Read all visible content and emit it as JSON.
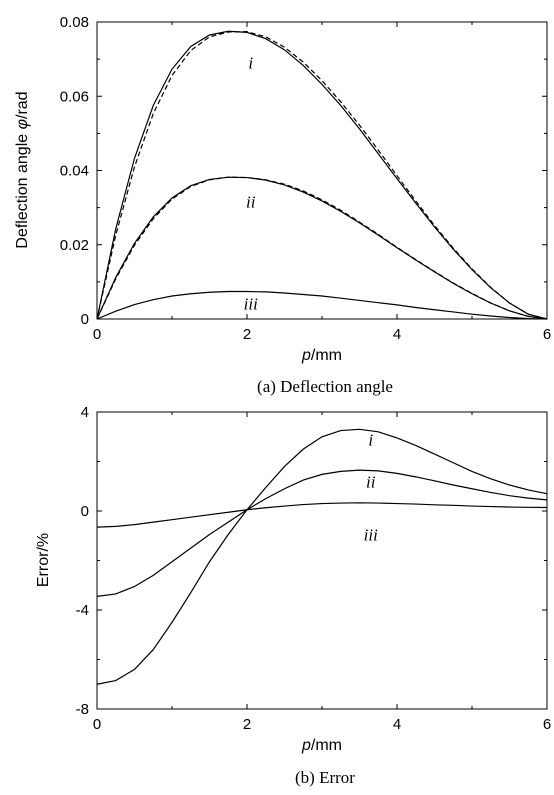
{
  "chart_data": [
    {
      "type": "line",
      "caption": "(a) Deflection angle",
      "xlabel_var": "p",
      "xlabel_unit": "/mm",
      "ylabel_prefix": "Deflection angle ",
      "ylabel_var": "φ",
      "ylabel_unit": "/rad",
      "xlim": [
        0,
        6
      ],
      "ylim": [
        0,
        0.08
      ],
      "xticks": [
        0,
        2,
        4,
        6
      ],
      "xtick_labels": [
        "0",
        "2",
        "4",
        "6"
      ],
      "yticks": [
        0,
        0.02,
        0.04,
        0.06,
        0.08
      ],
      "ytick_labels": [
        "0",
        "0.02",
        "0.04",
        "0.06",
        "0.08"
      ],
      "grid": false,
      "series": [
        {
          "name": "i",
          "style": "solid",
          "x": [
            0,
            0.25,
            0.5,
            0.75,
            1,
            1.25,
            1.5,
            1.75,
            2,
            2.25,
            2.5,
            2.75,
            3,
            3.25,
            3.5,
            3.75,
            4,
            4.25,
            4.5,
            4.75,
            5,
            5.25,
            5.5,
            5.75,
            6
          ],
          "values": [
            0,
            0.0243,
            0.0433,
            0.0575,
            0.0673,
            0.0734,
            0.0765,
            0.0775,
            0.0772,
            0.0755,
            0.0725,
            0.0683,
            0.0632,
            0.0575,
            0.0512,
            0.0445,
            0.0378,
            0.0312,
            0.0248,
            0.0188,
            0.0133,
            0.0084,
            0.0043,
            0.0013,
            0
          ]
        },
        {
          "name": "i",
          "style": "dashed",
          "x": [
            0,
            0.25,
            0.5,
            0.75,
            1,
            1.25,
            1.5,
            1.75,
            2,
            2.25,
            2.5,
            2.75,
            3,
            3.25,
            3.5,
            3.75,
            4,
            4.25,
            4.5,
            4.75,
            5,
            5.25,
            5.5,
            5.75,
            6
          ],
          "values": [
            0,
            0.0226,
            0.041,
            0.0553,
            0.0656,
            0.0723,
            0.076,
            0.0773,
            0.0774,
            0.076,
            0.0732,
            0.0692,
            0.0642,
            0.0585,
            0.0522,
            0.0455,
            0.0386,
            0.0318,
            0.0252,
            0.0191,
            0.0135,
            0.0085,
            0.0043,
            0.0013,
            0
          ]
        },
        {
          "name": "ii",
          "style": "solid",
          "x": [
            0,
            0.25,
            0.5,
            0.75,
            1,
            1.25,
            1.5,
            1.75,
            2,
            2.25,
            2.5,
            2.75,
            3,
            3.25,
            3.5,
            3.75,
            4,
            4.25,
            4.5,
            4.75,
            5,
            5.25,
            5.5,
            5.75,
            6
          ],
          "values": [
            0,
            0.0112,
            0.0204,
            0.0275,
            0.0326,
            0.0359,
            0.0376,
            0.0382,
            0.0381,
            0.0374,
            0.0361,
            0.0342,
            0.0318,
            0.029,
            0.0259,
            0.0226,
            0.0192,
            0.0159,
            0.0127,
            0.0096,
            0.0068,
            0.0043,
            0.0022,
            0.0007,
            0
          ]
        },
        {
          "name": "ii",
          "style": "dashed",
          "x": [
            0,
            0.25,
            0.5,
            0.75,
            1,
            1.25,
            1.5,
            1.75,
            2,
            2.25,
            2.5,
            2.75,
            3,
            3.25,
            3.5,
            3.75,
            4,
            4.25,
            4.5,
            4.75,
            5,
            5.25,
            5.5,
            5.75,
            6
          ],
          "values": [
            0,
            0.0108,
            0.0199,
            0.027,
            0.0323,
            0.0357,
            0.0375,
            0.0382,
            0.0381,
            0.0375,
            0.0363,
            0.0345,
            0.0321,
            0.0293,
            0.0261,
            0.0228,
            0.0193,
            0.016,
            0.0128,
            0.0097,
            0.0069,
            0.0043,
            0.0022,
            0.0007,
            0
          ]
        },
        {
          "name": "iii",
          "style": "solid",
          "x": [
            0,
            0.25,
            0.5,
            0.75,
            1,
            1.25,
            1.5,
            1.75,
            2,
            2.25,
            2.5,
            2.75,
            3,
            3.25,
            3.5,
            3.75,
            4,
            4.25,
            4.5,
            4.75,
            5,
            5.25,
            5.5,
            5.75,
            6
          ],
          "values": [
            0,
            0.0021,
            0.0039,
            0.0052,
            0.0062,
            0.0068,
            0.0072,
            0.0074,
            0.0074,
            0.0073,
            0.007,
            0.0066,
            0.0062,
            0.0056,
            0.005,
            0.0044,
            0.0038,
            0.0031,
            0.0025,
            0.0019,
            0.0013,
            0.0008,
            0.0004,
            0.0001,
            0
          ]
        }
      ],
      "curve_labels": [
        {
          "text": "i",
          "x": 2.05,
          "y": 0.0675
        },
        {
          "text": "ii",
          "x": 2.05,
          "y": 0.03
        },
        {
          "text": "iii",
          "x": 2.05,
          "y": 0.0025
        }
      ]
    },
    {
      "type": "line",
      "caption": "(b) Error",
      "xlabel_var": "p",
      "xlabel_unit": "/mm",
      "ylabel": "Error/%",
      "xlim": [
        0,
        6
      ],
      "ylim": [
        -8,
        4
      ],
      "xticks": [
        0,
        2,
        4,
        6
      ],
      "xtick_labels": [
        "0",
        "2",
        "4",
        "6"
      ],
      "yticks": [
        -8,
        -4,
        0,
        4
      ],
      "ytick_labels": [
        "-8",
        "-4",
        "0",
        "4"
      ],
      "grid": false,
      "series": [
        {
          "name": "i",
          "style": "solid",
          "x": [
            0,
            0.25,
            0.5,
            0.75,
            1,
            1.25,
            1.5,
            1.75,
            2,
            2.25,
            2.5,
            2.75,
            3,
            3.25,
            3.5,
            3.75,
            4,
            4.25,
            4.5,
            4.75,
            5,
            5.25,
            5.5,
            5.75,
            6
          ],
          "values": [
            -7.0,
            -6.85,
            -6.4,
            -5.6,
            -4.5,
            -3.3,
            -2.05,
            -0.95,
            0.05,
            0.95,
            1.8,
            2.5,
            3.0,
            3.25,
            3.3,
            3.2,
            2.95,
            2.65,
            2.3,
            1.95,
            1.6,
            1.3,
            1.05,
            0.85,
            0.7
          ]
        },
        {
          "name": "ii",
          "style": "solid",
          "x": [
            0,
            0.25,
            0.5,
            0.75,
            1,
            1.25,
            1.5,
            1.75,
            2,
            2.25,
            2.5,
            2.75,
            3,
            3.25,
            3.5,
            3.75,
            4,
            4.25,
            4.5,
            4.75,
            5,
            5.25,
            5.5,
            5.75,
            6
          ],
          "values": [
            -3.45,
            -3.35,
            -3.05,
            -2.6,
            -2.05,
            -1.5,
            -0.95,
            -0.45,
            0.05,
            0.5,
            0.9,
            1.25,
            1.48,
            1.6,
            1.65,
            1.62,
            1.52,
            1.38,
            1.22,
            1.05,
            0.9,
            0.75,
            0.62,
            0.52,
            0.45
          ]
        },
        {
          "name": "iii",
          "style": "solid",
          "x": [
            0,
            0.25,
            0.5,
            0.75,
            1,
            1.25,
            1.5,
            1.75,
            2,
            2.25,
            2.5,
            2.75,
            3,
            3.25,
            3.5,
            3.75,
            4,
            4.25,
            4.5,
            4.75,
            5,
            5.25,
            5.5,
            5.75,
            6
          ],
          "values": [
            -0.65,
            -0.62,
            -0.55,
            -0.45,
            -0.35,
            -0.25,
            -0.15,
            -0.05,
            0.05,
            0.13,
            0.2,
            0.26,
            0.3,
            0.32,
            0.33,
            0.32,
            0.3,
            0.28,
            0.25,
            0.23,
            0.2,
            0.18,
            0.16,
            0.15,
            0.14
          ]
        }
      ],
      "curve_labels": [
        {
          "text": "i",
          "x": 3.65,
          "y": 2.65
        },
        {
          "text": "ii",
          "x": 3.65,
          "y": 0.95
        },
        {
          "text": "iii",
          "x": 3.65,
          "y": -1.2
        }
      ]
    }
  ]
}
